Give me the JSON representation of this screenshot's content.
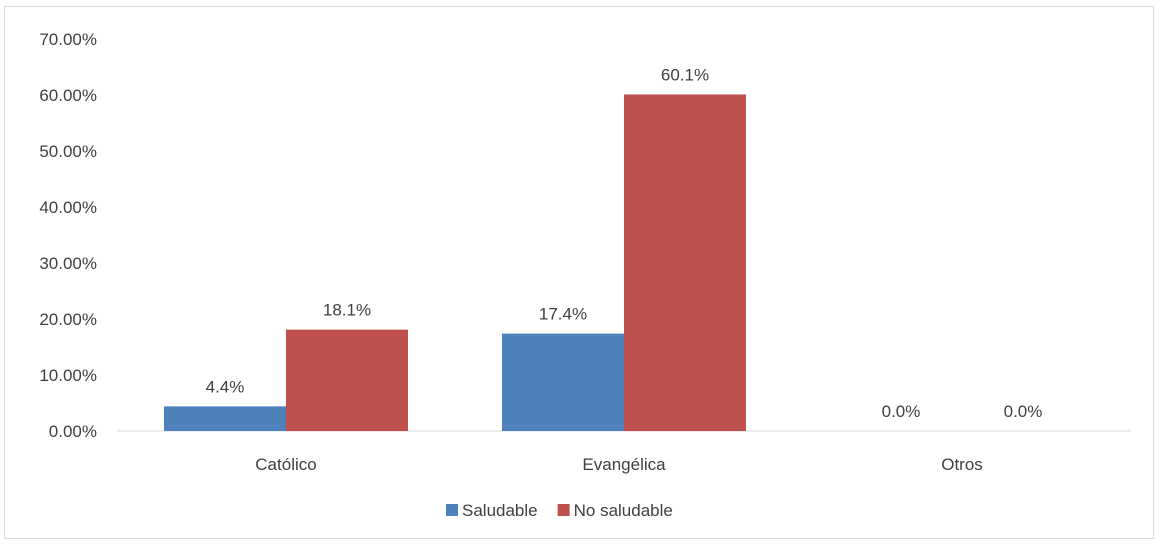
{
  "chart_data": {
    "type": "bar",
    "categories": [
      "Católico",
      "Evangélica",
      "Otros"
    ],
    "series": [
      {
        "name": "Saludable",
        "values": [
          4.4,
          17.4,
          0.0
        ],
        "labels": [
          "4.4%",
          "17.4%",
          "0.0%"
        ],
        "color": "#4f81bd"
      },
      {
        "name": "No saludable",
        "values": [
          18.1,
          60.1,
          0.0
        ],
        "labels": [
          "18.1%",
          "60.1%",
          "0.0%"
        ],
        "color": "#c0504d"
      }
    ],
    "yticks": [
      "0.00%",
      "10.00%",
      "20.00%",
      "30.00%",
      "40.00%",
      "50.00%",
      "60.00%",
      "70.00%"
    ],
    "ylim": [
      0,
      70
    ],
    "title": "",
    "xlabel": "",
    "ylabel": "",
    "grid": false,
    "legend_position": "bottom"
  }
}
